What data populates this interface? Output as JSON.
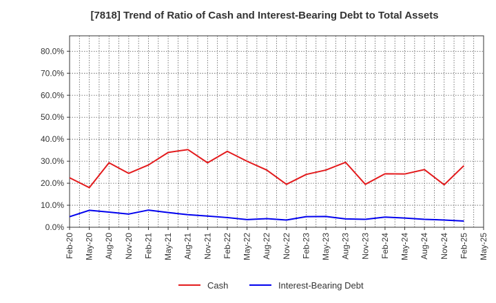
{
  "chart_data": {
    "type": "line",
    "title": "[7818]  Trend of Ratio of Cash and Interest-Bearing Debt to Total Assets",
    "xlabel": "",
    "ylabel": "",
    "categories": [
      "Feb-20",
      "May-20",
      "Aug-20",
      "Nov-20",
      "Feb-21",
      "May-21",
      "Aug-21",
      "Nov-21",
      "Feb-22",
      "May-22",
      "Aug-22",
      "Nov-22",
      "Feb-23",
      "May-23",
      "Aug-23",
      "Nov-23",
      "Feb-24",
      "May-24",
      "Aug-24",
      "Nov-24",
      "Feb-25",
      "May-25"
    ],
    "y_ticks": [
      "0.0%",
      "10.0%",
      "20.0%",
      "30.0%",
      "40.0%",
      "50.0%",
      "60.0%",
      "70.0%",
      "80.0%"
    ],
    "ylim": [
      0,
      87
    ],
    "grid": true,
    "legend_position": "bottom",
    "series": [
      {
        "name": "Cash",
        "color": "#e31a1c",
        "values": [
          22.5,
          18.0,
          29.3,
          24.5,
          28.3,
          34.0,
          35.3,
          29.3,
          34.5,
          30.0,
          26.0,
          19.5,
          24.0,
          26.0,
          29.5,
          19.5,
          24.3,
          24.2,
          26.2,
          19.3,
          28.0,
          null
        ]
      },
      {
        "name": "Interest-Bearing Debt",
        "color": "#0000ee",
        "values": [
          4.8,
          7.7,
          6.9,
          6.0,
          7.8,
          6.7,
          5.7,
          5.1,
          4.4,
          3.5,
          3.9,
          3.3,
          4.8,
          4.9,
          3.8,
          3.6,
          4.6,
          4.2,
          3.6,
          3.3,
          2.8,
          null
        ]
      }
    ]
  }
}
